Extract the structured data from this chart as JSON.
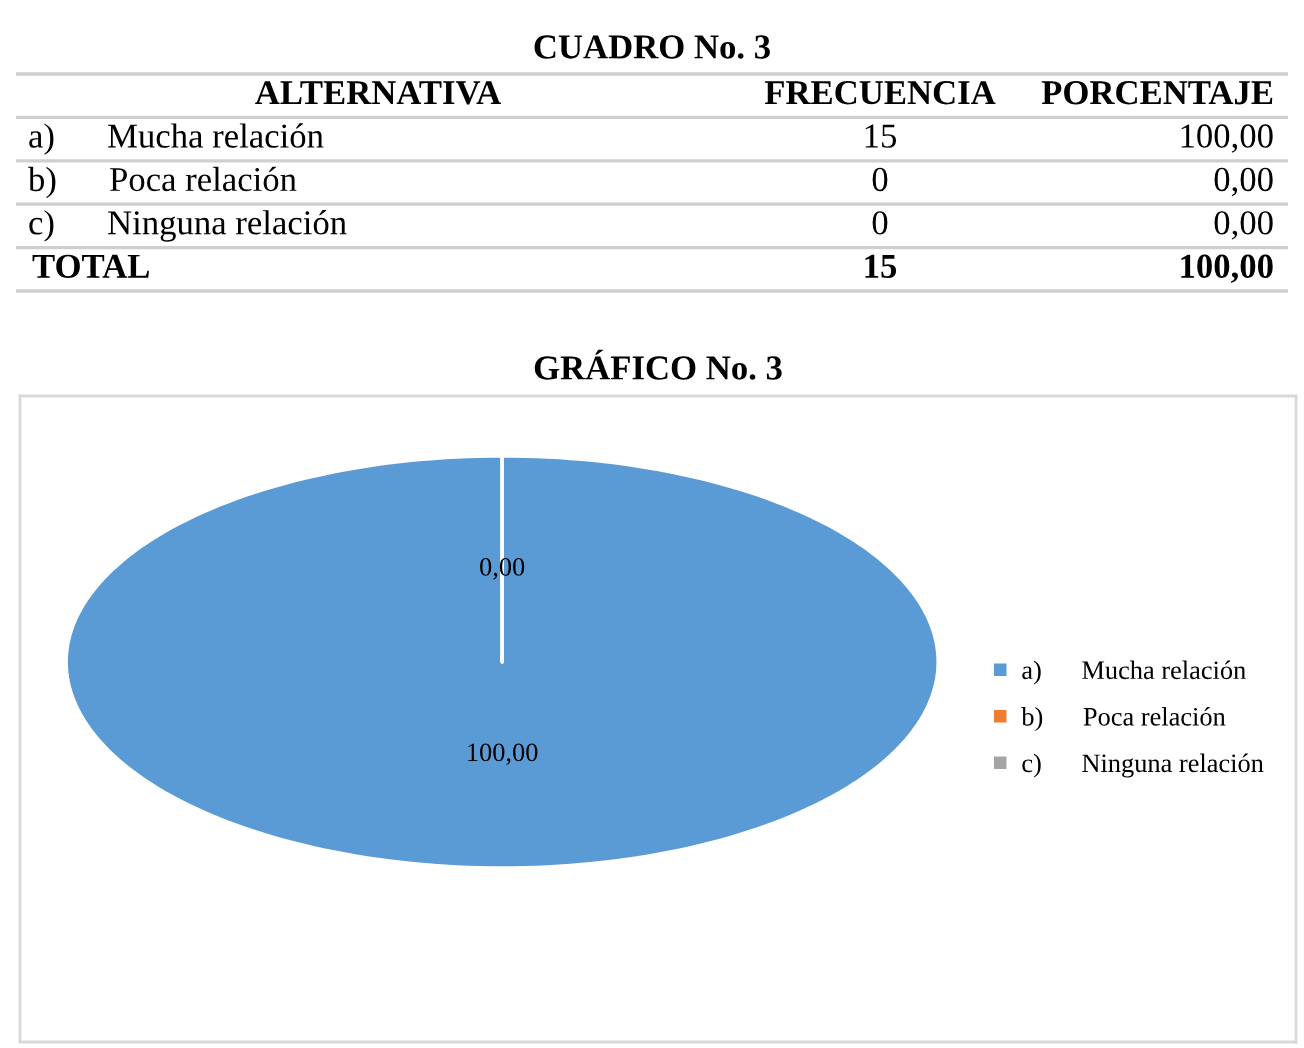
{
  "chart_data": [
    {
      "type": "other",
      "title": "CUADRO No. 3",
      "xlabel": "ALTERNATIVA",
      "categories": [
        "a)      Mucha relación",
        "b)      Poca relación",
        "c)      Ninguna relación"
      ],
      "series": [
        {
          "name": "FRECUENCIA",
          "values": [
            15,
            0,
            0
          ],
          "value_labels": [
            "15",
            "0",
            "0"
          ]
        },
        {
          "name": "PORCENTAJE",
          "values": [
            100,
            0,
            0
          ],
          "value_labels": [
            "100,00",
            "0,00",
            "0,00"
          ]
        }
      ],
      "totals": [
        "15",
        "100,00"
      ],
      "annotations": [
        "TOTAL"
      ]
    },
    {
      "type": "pie",
      "title": "GRÁFICO No. 3",
      "categories": [
        "a)      Mucha relación",
        "b)      Poca relación",
        "c)      Ninguna relación"
      ],
      "values": [
        100,
        0,
        0
      ],
      "colors": [
        "#5b9bd5",
        "#ed7d31",
        "#a5a5a5"
      ],
      "value_labels": [
        "100,00",
        "0,00",
        null
      ],
      "legend": "right"
    }
  ]
}
